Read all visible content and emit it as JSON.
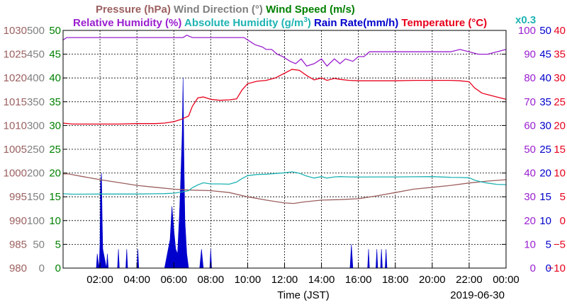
{
  "chart_data": {
    "type": "line",
    "title_row1": [
      {
        "text": "Pressure (hPa)",
        "color": "#9c5f5f"
      },
      {
        "text": "Wind Direction (°)",
        "color": "#808080"
      },
      {
        "text": "Wind Speed (m/s)",
        "color": "#008000"
      }
    ],
    "title_row2": [
      {
        "text": "Relative Humidity (%)",
        "color": "#9a1ecf"
      },
      {
        "text": "Absolute Humidity (g/m",
        "sup": "3",
        "close": ")",
        "color": "#1fb3b3"
      },
      {
        "text": "Rain Rate(mm/h)",
        "color": "#0000cc"
      },
      {
        "text": "Temperature (°C)",
        "color": "#e8001c"
      }
    ],
    "scale_note": {
      "text": "x0.3",
      "color": "#1fb3b3"
    },
    "xlabel": "Time (JST)",
    "date_label": "2019-06-30",
    "x_range": [
      0,
      24
    ],
    "x_ticks": [
      {
        "hour": 2,
        "label": "02:00"
      },
      {
        "hour": 4,
        "label": "04:00"
      },
      {
        "hour": 6,
        "label": "06:00"
      },
      {
        "hour": 8,
        "label": "08:00"
      },
      {
        "hour": 10,
        "label": "10:00"
      },
      {
        "hour": 12,
        "label": "12:00"
      },
      {
        "hour": 14,
        "label": "14:00"
      },
      {
        "hour": 16,
        "label": "16:00"
      },
      {
        "hour": 18,
        "label": "18:00"
      },
      {
        "hour": 20,
        "label": "20:00"
      },
      {
        "hour": 22,
        "label": "22:00"
      },
      {
        "hour": 24,
        "label": "00:00"
      }
    ],
    "grid": true,
    "left_axes": [
      {
        "name": "Pressure (hPa)",
        "color": "#9c5f5f",
        "range": [
          980,
          1030
        ],
        "ticks": [
          "980",
          "985",
          "990",
          "995",
          "1000",
          "1005",
          "1010",
          "1015",
          "1020",
          "1025",
          "1030"
        ]
      },
      {
        "name": "Wind Direction (°)",
        "color": "#808080",
        "range": [
          0,
          500
        ],
        "ticks": [
          "0",
          "50",
          "100",
          "150",
          "200",
          "250",
          "300",
          "350",
          "400",
          "450",
          "500"
        ]
      },
      {
        "name": "Wind Speed (m/s)",
        "color": "#008000",
        "range": [
          0,
          50
        ],
        "ticks": [
          "0",
          "5",
          "10",
          "15",
          "20",
          "25",
          "30",
          "35",
          "40",
          "45",
          "50"
        ]
      }
    ],
    "right_axes": [
      {
        "name": "Relative Humidity (%)",
        "color": "#9a1ecf",
        "range": [
          0,
          100
        ],
        "ticks": [
          "0",
          "10",
          "20",
          "30",
          "40",
          "50",
          "60",
          "70",
          "80",
          "90",
          "100"
        ]
      },
      {
        "name": "Rain Rate(mm/h)",
        "color": "#0000cc",
        "range": [
          0,
          50
        ],
        "ticks": [
          "0",
          "5",
          "10",
          "15",
          "20",
          "25",
          "30",
          "35",
          "40",
          "45",
          "50"
        ]
      },
      {
        "name": "Temperature (°C)",
        "color": "#e8001c",
        "range": [
          -10,
          40
        ],
        "ticks": [
          "−10",
          "−5",
          "0",
          "5",
          "10",
          "15",
          "20",
          "25",
          "30",
          "35",
          "40"
        ]
      }
    ],
    "series": [
      {
        "name": "Relative Humidity (%)",
        "axis": "right-0",
        "color": "#9a1ecf",
        "x": [
          0.0,
          0.2,
          0.6,
          1,
          2,
          3,
          4,
          5,
          6,
          6.5,
          6.7,
          7,
          8,
          9,
          9.8,
          10,
          10.4,
          10.8,
          11,
          11.3,
          11.6,
          11.9,
          12.1,
          12.3,
          12.6,
          12.9,
          13.2,
          13.6,
          14,
          14.3,
          14.7,
          15,
          15.3,
          15.7,
          16,
          16.3,
          16.6,
          17,
          17.5,
          18,
          19,
          20,
          21,
          21.5,
          22,
          22.5,
          23,
          23.5,
          24
        ],
        "values": [
          96,
          97,
          97,
          97,
          97,
          97,
          97,
          97,
          97,
          97,
          98,
          97,
          97,
          97,
          97,
          96,
          94,
          93,
          92,
          92,
          90,
          89,
          88,
          87,
          86,
          88,
          85,
          86,
          88,
          85,
          88,
          86,
          88,
          87,
          89,
          89,
          91,
          91,
          91,
          91,
          91,
          91,
          91,
          92,
          91,
          90,
          90,
          91,
          92
        ]
      },
      {
        "name": "Temperature (°C)",
        "axis": "right-2",
        "color": "#e8001c",
        "x": [
          0,
          0.5,
          1,
          2,
          3,
          4,
          5,
          5.5,
          6,
          6.4,
          6.8,
          7.0,
          7.3,
          7.6,
          8,
          8.5,
          9,
          9.4,
          9.7,
          10,
          10.5,
          11,
          11.5,
          12,
          12.4,
          12.8,
          13.2,
          13.6,
          14,
          14.3,
          14.7,
          15,
          15.5,
          16,
          17,
          18,
          19,
          20,
          21,
          21.5,
          22,
          22.3,
          22.7,
          23,
          23.5,
          24
        ],
        "values": [
          20.5,
          20.3,
          20.3,
          20.3,
          20.3,
          20.4,
          20.4,
          20.5,
          20.8,
          21.3,
          22,
          24,
          25.8,
          26,
          25.5,
          25.3,
          25.4,
          25.6,
          27.5,
          28.8,
          29.3,
          29.5,
          30,
          31,
          31.8,
          31.6,
          30.5,
          29.6,
          30,
          29.5,
          29.9,
          29.7,
          29.5,
          29.4,
          29.4,
          29.4,
          29.5,
          29.5,
          29.5,
          29.4,
          29.2,
          27.9,
          26.8,
          26.5,
          26.0,
          25.5
        ]
      },
      {
        "name": "Absolute Humidity (g/m³)",
        "axis": "right-2",
        "scale": 0.3,
        "color": "#1fb3b3",
        "x": [
          0,
          0.5,
          1,
          2,
          3,
          4,
          5,
          5.5,
          6,
          6.4,
          6.8,
          7.0,
          7.3,
          7.6,
          8,
          8.5,
          9,
          9.4,
          9.7,
          10,
          10.5,
          11,
          11.5,
          12,
          12.4,
          12.8,
          13.2,
          13.6,
          14,
          14.3,
          14.7,
          15,
          15.5,
          16,
          17,
          18,
          19,
          20,
          21,
          21.5,
          22,
          22.3,
          22.7,
          23,
          23.5,
          24
        ],
        "values": [
          18.8,
          18.5,
          18.5,
          18.6,
          18.6,
          18.6,
          18.8,
          18.9,
          19.2,
          20,
          21,
          23,
          25,
          26.5,
          25.7,
          25.7,
          25.5,
          27,
          29.5,
          31.5,
          32.3,
          32.5,
          33,
          33.5,
          34.2,
          33.2,
          31.2,
          29.8,
          30.8,
          29.8,
          30.6,
          30.8,
          30.6,
          30.5,
          30.6,
          30.6,
          30.7,
          30.8,
          30.3,
          30.2,
          30.0,
          28.3,
          27.0,
          26.3,
          25.4,
          25.2
        ]
      },
      {
        "name": "Pressure (hPa)",
        "axis": "left-0",
        "color": "#9c5f5f",
        "x": [
          0,
          0.3,
          1,
          2,
          3,
          4,
          5,
          6,
          7,
          8,
          9,
          10,
          11,
          12,
          12.5,
          13,
          14,
          15,
          16,
          17,
          18,
          19,
          20,
          21,
          22,
          23,
          24
        ],
        "values": [
          999.8,
          999.8,
          999.3,
          998.6,
          998,
          997.4,
          997.0,
          996.6,
          996.4,
          996.3,
          995.9,
          995.0,
          994.3,
          993.7,
          993.6,
          993.9,
          994.3,
          994.4,
          994.6,
          995.2,
          995.9,
          996.6,
          997.0,
          997.4,
          997.9,
          998.3,
          998.6
        ]
      },
      {
        "name": "Rain Rate(mm/h)",
        "axis": "right-1",
        "color": "#0000cc",
        "fill": true,
        "x": [
          0,
          1.8,
          1.85,
          1.95,
          2.0,
          2.03,
          2.08,
          2.12,
          2.15,
          2.25,
          2.35,
          2.4,
          2.45,
          2.5,
          2.95,
          3.0,
          3.05,
          3.4,
          3.45,
          3.5,
          4.0,
          4.05,
          4.1,
          5.5,
          5.7,
          5.8,
          5.9,
          6.0,
          6.1,
          6.2,
          6.3,
          6.35,
          6.45,
          6.5,
          6.55,
          6.6,
          6.7,
          6.8,
          6.9,
          7.0,
          7.4,
          7.5,
          7.6,
          7.95,
          8.0,
          8.05,
          15.5,
          15.55,
          15.62,
          15.7,
          16.5,
          16.55,
          16.6,
          16.95,
          17.0,
          17.05,
          17.2,
          17.25,
          17.3,
          17.45,
          17.5,
          17.55,
          24
        ],
        "values": [
          0,
          0,
          3,
          0,
          5,
          18,
          20,
          10,
          4,
          2,
          0,
          3,
          0,
          0,
          0,
          4,
          0,
          0,
          4,
          0,
          0,
          4,
          0,
          0,
          4,
          6,
          13,
          8,
          4,
          3,
          11,
          16,
          28,
          40,
          22,
          10,
          3,
          0,
          0,
          0,
          0,
          4,
          0,
          0,
          4,
          0,
          0,
          0,
          5,
          0,
          0,
          4,
          0,
          0,
          4,
          0,
          0,
          4,
          0,
          0,
          4,
          0,
          0
        ]
      }
    ]
  }
}
